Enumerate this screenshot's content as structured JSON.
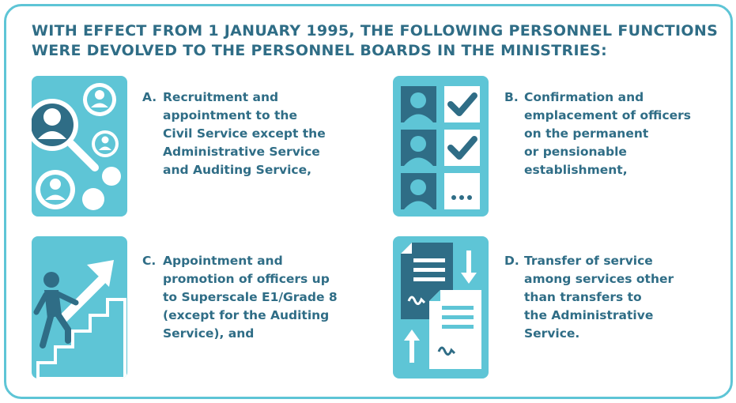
{
  "heading": {
    "line1": "WITH EFFECT FROM 1 JANUARY 1995, THE FOLLOWING PERSONNEL FUNCTIONS",
    "line2": "WERE DEVOLVED TO THE PERSONNEL BOARDS IN THE MINISTRIES:"
  },
  "colors": {
    "accent": "#5ec5d6",
    "dark": "#2f6d86",
    "text": "#2f6d86",
    "white": "#ffffff"
  },
  "items": [
    {
      "label": "A.",
      "icon": "recruitment-search-icon",
      "lines": [
        "Recruitment and",
        "appointment to the",
        "Civil Service except the",
        "Administrative Service",
        "and Auditing Service,"
      ]
    },
    {
      "label": "B.",
      "icon": "checklist-icon",
      "lines": [
        "Confirmation and",
        "emplacement of officers",
        "on the permanent",
        "or pensionable",
        "establishment,"
      ]
    },
    {
      "label": "C.",
      "icon": "career-stairs-icon",
      "lines": [
        "Appointment and",
        "promotion of officers up",
        "to Superscale E1/Grade 8",
        "(except for the Auditing",
        "Service), and"
      ]
    },
    {
      "label": "D.",
      "icon": "document-transfer-icon",
      "lines": [
        "Transfer of service",
        "among services other",
        "than transfers to",
        "the Administrative",
        "Service."
      ]
    }
  ]
}
